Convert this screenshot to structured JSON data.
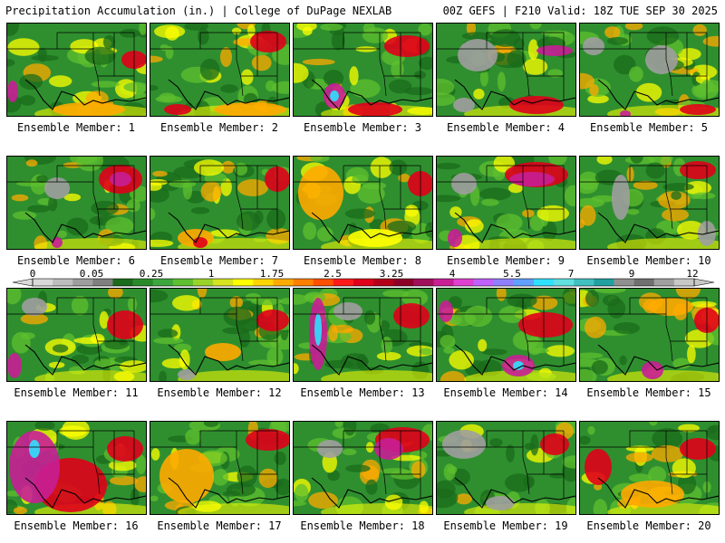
{
  "header": {
    "left": "Precipitation Accumulation (in.) | College of DuPage NEXLAB",
    "right": "00Z GEFS | F210 Valid: 18Z TUE SEP 30 2025"
  },
  "colorbar": {
    "labels": [
      "0",
      "0.05",
      "0.25",
      "1",
      "1.75",
      "2.5",
      "3.25",
      "4",
      "5.5",
      "7",
      "9",
      "12"
    ],
    "colors": [
      "#d9d9d9",
      "#bdbdbd",
      "#9e9e9e",
      "#7f7f7f",
      "#1b6b1b",
      "#2a8a2a",
      "#3da63d",
      "#5fbf2f",
      "#9bd22a",
      "#d6e31e",
      "#ffff00",
      "#ffd400",
      "#ffaa00",
      "#ff7f00",
      "#ff4f00",
      "#ff1a1a",
      "#e0001a",
      "#b30018",
      "#8c0028",
      "#a0105a",
      "#c81e96",
      "#e040d0",
      "#c060ff",
      "#9080ff",
      "#60a0ff",
      "#30e0ff",
      "#60e0e0",
      "#40c0c0",
      "#20a0a0",
      "#909090",
      "#707070",
      "#a0a0a0",
      "#c8c8c8"
    ]
  },
  "palette": {
    "green": "#2f8f2f",
    "dark_green": "#1b6b1b",
    "light_green": "#5fbf2f",
    "yellow": "#ffff00",
    "orange": "#ffaa00",
    "red": "#e0001a",
    "magenta": "#c81e96",
    "cyan": "#30e0ff",
    "gray": "#9e9e9e"
  },
  "members": [
    {
      "label": "Ensemble Member: 1"
    },
    {
      "label": "Ensemble Member: 2"
    },
    {
      "label": "Ensemble Member: 3"
    },
    {
      "label": "Ensemble Member: 4"
    },
    {
      "label": "Ensemble Member: 5"
    },
    {
      "label": "Ensemble Member: 6"
    },
    {
      "label": "Ensemble Member: 7"
    },
    {
      "label": "Ensemble Member: 8"
    },
    {
      "label": "Ensemble Member: 9"
    },
    {
      "label": "Ensemble Member: 10"
    },
    {
      "label": "Ensemble Member: 11"
    },
    {
      "label": "Ensemble Member: 12"
    },
    {
      "label": "Ensemble Member: 13"
    },
    {
      "label": "Ensemble Member: 14"
    },
    {
      "label": "Ensemble Member: 15"
    },
    {
      "label": "Ensemble Member: 16"
    },
    {
      "label": "Ensemble Member: 17"
    },
    {
      "label": "Ensemble Member: 18"
    },
    {
      "label": "Ensemble Member: 19"
    },
    {
      "label": "Ensemble Member: 20"
    }
  ]
}
